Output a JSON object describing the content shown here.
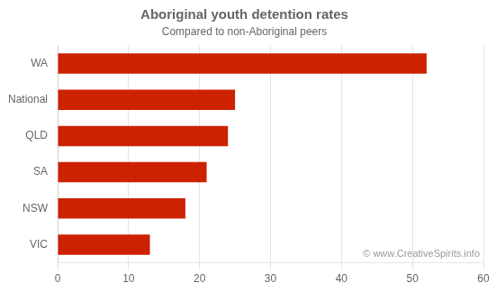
{
  "chart_data": {
    "type": "bar",
    "orientation": "horizontal",
    "title": "Aboriginal youth detention rates",
    "subtitle": "Compared to non-Aboriginal peers",
    "annotation": "© www.CreativeSpirits.info",
    "categories": [
      "WA",
      "National",
      "QLD",
      "SA",
      "NSW",
      "VIC"
    ],
    "values": [
      52,
      25,
      24,
      21,
      18,
      13
    ],
    "color": "#cc2200",
    "xlim": [
      0,
      60
    ],
    "xticks": [
      0,
      10,
      20,
      30,
      40,
      50,
      60
    ],
    "grid": true
  }
}
